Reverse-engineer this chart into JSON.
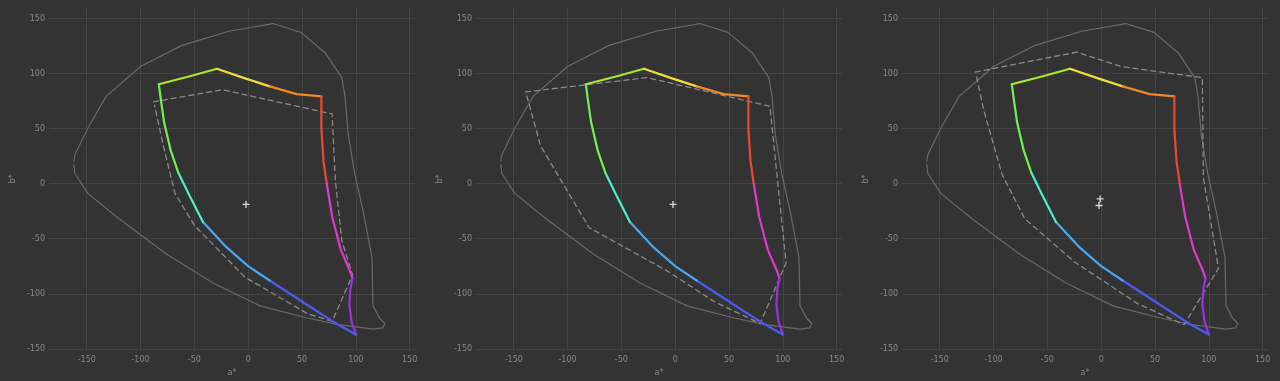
{
  "chart_data": [
    {
      "type": "line",
      "xlabel": "a*",
      "ylabel": "b*",
      "xlim": [
        -185,
        155
      ],
      "ylim": [
        -152,
        160
      ],
      "xticks": [
        -150,
        -100,
        -50,
        0,
        50,
        100,
        150
      ],
      "yticks": [
        -150,
        -100,
        -50,
        0,
        50,
        100,
        150
      ],
      "grid": true,
      "series": [
        {
          "color": "#6a6a6a",
          "x": [
            -162,
            -161,
            -149,
            -132,
            -100,
            -62,
            -18,
            23,
            49,
            72,
            87,
            90,
            93,
            99,
            107,
            115,
            116,
            122,
            127,
            125,
            116,
            84,
            55,
            11,
            -33,
            -76,
            -120,
            -149,
            -161,
            -162
          ],
          "values": [
            20,
            26,
            50,
            79,
            106,
            125,
            138,
            145,
            137,
            118,
            96,
            79,
            44,
            9,
            -26,
            -67,
            -111,
            -122,
            -127,
            -131,
            -132,
            -128,
            -122,
            -111,
            -90,
            -64,
            -32,
            -9,
            9,
            17
          ]
        },
        {
          "color": "#8a8a8a",
          "line_style": "dashed",
          "x": [
            -88,
            -24,
            78,
            81,
            87,
            97,
            78,
            55,
            -3,
            -50,
            -68,
            -79,
            -87
          ],
          "values": [
            74,
            85,
            63,
            3,
            -52,
            -83,
            -125,
            -118,
            -85,
            -38,
            -9,
            35,
            71
          ]
        },
        {
          "color": "#a8e830",
          "x": [
            -83,
            -55,
            -29
          ],
          "values": [
            90,
            97,
            104
          ]
        },
        {
          "color": "#f0dc3c",
          "x": [
            -29,
            -5,
            20
          ],
          "values": [
            104,
            96,
            88
          ]
        },
        {
          "color": "#f08a28",
          "x": [
            20,
            45,
            68
          ],
          "values": [
            88,
            81,
            79
          ]
        },
        {
          "color": "#ec4a30",
          "x": [
            68,
            68,
            70,
            73
          ],
          "values": [
            79,
            50,
            20,
            0
          ]
        },
        {
          "color": "#e038c8",
          "x": [
            73,
            78,
            86,
            94,
            97
          ],
          "values": [
            0,
            -30,
            -60,
            -78,
            -86
          ]
        },
        {
          "color": "#9a30e8",
          "x": [
            97,
            95,
            94,
            96,
            99,
            100
          ],
          "values": [
            -86,
            -95,
            -110,
            -125,
            -134,
            -137
          ]
        },
        {
          "color": "#4a5cf0",
          "x": [
            100,
            80,
            50,
            20
          ],
          "values": [
            -137,
            -126,
            -107,
            -88
          ]
        },
        {
          "color": "#46a8f0",
          "x": [
            20,
            0,
            -20,
            -42
          ],
          "values": [
            -88,
            -75,
            -58,
            -35
          ]
        },
        {
          "color": "#48f0c8",
          "x": [
            -42,
            -55,
            -65
          ],
          "values": [
            -35,
            -10,
            10
          ]
        },
        {
          "color": "#70f050",
          "x": [
            -65,
            -72,
            -78,
            -81,
            -83
          ],
          "values": [
            10,
            30,
            55,
            75,
            90
          ]
        },
        {
          "type": "scatter",
          "marker": "cross",
          "color": "#ffffff",
          "x": [
            -2
          ],
          "values": [
            -19
          ]
        }
      ]
    },
    {
      "type": "line",
      "xlabel": "a*",
      "ylabel": "b*",
      "xlim": [
        -185,
        155
      ],
      "ylim": [
        -152,
        160
      ],
      "xticks": [
        -150,
        -100,
        -50,
        0,
        50,
        100,
        150
      ],
      "yticks": [
        -150,
        -100,
        -50,
        0,
        50,
        100,
        150
      ],
      "grid": true,
      "series": [
        {
          "color": "#6a6a6a",
          "x": [
            -162,
            -161,
            -149,
            -132,
            -100,
            -62,
            -18,
            23,
            49,
            72,
            87,
            90,
            93,
            99,
            107,
            115,
            116,
            122,
            127,
            125,
            116,
            84,
            55,
            11,
            -33,
            -76,
            -120,
            -149,
            -161,
            -162
          ],
          "values": [
            20,
            26,
            50,
            79,
            106,
            125,
            138,
            145,
            137,
            118,
            96,
            79,
            44,
            9,
            -26,
            -67,
            -111,
            -122,
            -127,
            -131,
            -132,
            -128,
            -122,
            -111,
            -90,
            -64,
            -32,
            -9,
            9,
            17
          ]
        },
        {
          "color": "#8a8a8a",
          "line_style": "dashed",
          "x": [
            -139,
            -26,
            88,
            103,
            79,
            36,
            -8,
            -80,
            -125,
            -138
          ],
          "values": [
            83,
            96,
            70,
            -72,
            -127,
            -107,
            -79,
            -40,
            34,
            80
          ]
        },
        {
          "color": "#a8e830",
          "x": [
            -83,
            -55,
            -29
          ],
          "values": [
            90,
            97,
            104
          ]
        },
        {
          "color": "#f0dc3c",
          "x": [
            -29,
            -5,
            20
          ],
          "values": [
            104,
            96,
            88
          ]
        },
        {
          "color": "#f08a28",
          "x": [
            20,
            45,
            68
          ],
          "values": [
            88,
            81,
            79
          ]
        },
        {
          "color": "#ec4a30",
          "x": [
            68,
            68,
            70,
            73
          ],
          "values": [
            79,
            50,
            20,
            0
          ]
        },
        {
          "color": "#e038c8",
          "x": [
            73,
            78,
            86,
            94,
            97
          ],
          "values": [
            0,
            -30,
            -60,
            -78,
            -86
          ]
        },
        {
          "color": "#9a30e8",
          "x": [
            97,
            95,
            94,
            96,
            99,
            100
          ],
          "values": [
            -86,
            -95,
            -110,
            -125,
            -134,
            -137
          ]
        },
        {
          "color": "#4a5cf0",
          "x": [
            100,
            80,
            50,
            20
          ],
          "values": [
            -137,
            -126,
            -107,
            -88
          ]
        },
        {
          "color": "#46a8f0",
          "x": [
            20,
            0,
            -20,
            -42
          ],
          "values": [
            -88,
            -75,
            -58,
            -35
          ]
        },
        {
          "color": "#48f0c8",
          "x": [
            -42,
            -55,
            -65
          ],
          "values": [
            -35,
            -10,
            10
          ]
        },
        {
          "color": "#70f050",
          "x": [
            -65,
            -72,
            -78,
            -81,
            -83
          ],
          "values": [
            10,
            30,
            55,
            75,
            90
          ]
        },
        {
          "type": "scatter",
          "marker": "cross",
          "color": "#ffffff",
          "x": [
            -2
          ],
          "values": [
            -19
          ]
        }
      ]
    },
    {
      "type": "line",
      "xlabel": "a*",
      "ylabel": "b*",
      "xlim": [
        -185,
        155
      ],
      "ylim": [
        -152,
        160
      ],
      "xticks": [
        -150,
        -100,
        -50,
        0,
        50,
        100,
        150
      ],
      "yticks": [
        -150,
        -100,
        -50,
        0,
        50,
        100,
        150
      ],
      "grid": true,
      "series": [
        {
          "color": "#6a6a6a",
          "x": [
            -162,
            -161,
            -149,
            -132,
            -100,
            -62,
            -18,
            23,
            49,
            72,
            87,
            90,
            93,
            99,
            107,
            115,
            116,
            122,
            127,
            125,
            116,
            84,
            55,
            11,
            -33,
            -76,
            -120,
            -149,
            -161,
            -162
          ],
          "values": [
            20,
            26,
            50,
            79,
            106,
            125,
            138,
            145,
            137,
            118,
            96,
            79,
            44,
            9,
            -26,
            -67,
            -111,
            -122,
            -127,
            -131,
            -132,
            -128,
            -122,
            -111,
            -90,
            -64,
            -32,
            -9,
            9,
            17
          ]
        },
        {
          "color": "#8a8a8a",
          "line_style": "dashed",
          "x": [
            -117,
            -23,
            19,
            63,
            94,
            95,
            109,
            77,
            34,
            -25,
            -71,
            -92,
            -109,
            -116
          ],
          "values": [
            101,
            119,
            106,
            100,
            96,
            5,
            -77,
            -128,
            -109,
            -71,
            -32,
            8,
            66,
            98
          ]
        },
        {
          "color": "#a8e830",
          "x": [
            -83,
            -55,
            -29
          ],
          "values": [
            90,
            97,
            104
          ]
        },
        {
          "color": "#f0dc3c",
          "x": [
            -29,
            -5,
            20
          ],
          "values": [
            104,
            96,
            88
          ]
        },
        {
          "color": "#f08a28",
          "x": [
            20,
            45,
            68
          ],
          "values": [
            88,
            81,
            79
          ]
        },
        {
          "color": "#ec4a30",
          "x": [
            68,
            68,
            70,
            73
          ],
          "values": [
            79,
            50,
            20,
            0
          ]
        },
        {
          "color": "#e038c8",
          "x": [
            73,
            78,
            86,
            94,
            97
          ],
          "values": [
            0,
            -30,
            -60,
            -78,
            -86
          ]
        },
        {
          "color": "#9a30e8",
          "x": [
            97,
            95,
            94,
            96,
            99,
            100
          ],
          "values": [
            -86,
            -95,
            -110,
            -125,
            -134,
            -137
          ]
        },
        {
          "color": "#4a5cf0",
          "x": [
            100,
            80,
            50,
            20
          ],
          "values": [
            -137,
            -126,
            -107,
            -88
          ]
        },
        {
          "color": "#46a8f0",
          "x": [
            20,
            0,
            -20,
            -42
          ],
          "values": [
            -88,
            -75,
            -58,
            -35
          ]
        },
        {
          "color": "#48f0c8",
          "x": [
            -42,
            -55,
            -65
          ],
          "values": [
            -35,
            -10,
            10
          ]
        },
        {
          "color": "#70f050",
          "x": [
            -65,
            -72,
            -78,
            -81,
            -83
          ],
          "values": [
            10,
            30,
            55,
            75,
            90
          ]
        },
        {
          "type": "scatter",
          "marker": "cross",
          "color": "#ffffff",
          "x": [
            -2,
            -1
          ],
          "values": [
            -20,
            -14
          ]
        }
      ]
    }
  ]
}
